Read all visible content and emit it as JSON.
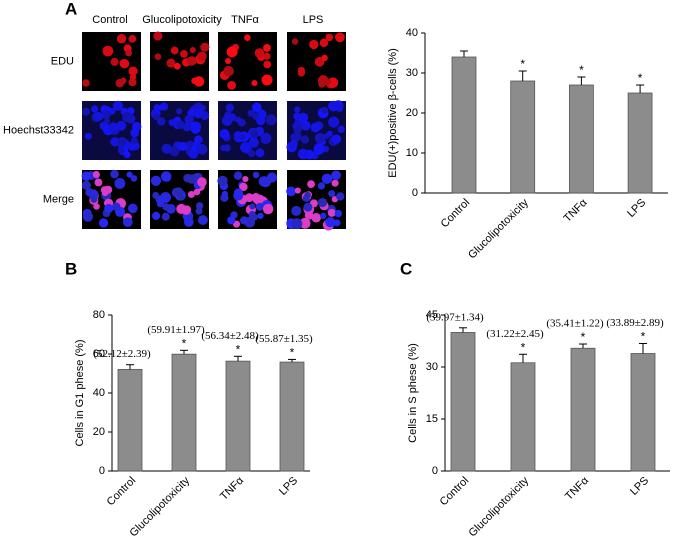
{
  "image_panel": {
    "columns": [
      "Control",
      "Glucolipotoxicity",
      "TNFα",
      "LPS"
    ],
    "rows": [
      "EDU",
      "Hoechst33342",
      "Merge"
    ]
  },
  "chart_data": [
    {
      "type": "bar",
      "panel": "A",
      "ylabel": "EDU(+)positive β-cells (%)",
      "categories": [
        "Control",
        "Glucolipotoxicity",
        "TNFα",
        "LPS"
      ],
      "values": [
        34,
        28,
        27,
        25
      ],
      "errors": [
        1.5,
        2.5,
        2,
        2
      ],
      "significance": [
        null,
        "*",
        "*",
        "*"
      ],
      "color": "#8c8c8c",
      "ylim": [
        0,
        40
      ],
      "yticks": [
        0,
        10,
        20,
        30,
        40
      ]
    },
    {
      "type": "bar",
      "panel": "B",
      "ylabel": "Cells in G1 phese (%)",
      "categories": [
        "Control",
        "Glucolipotoxicity",
        "TNFα",
        "LPS"
      ],
      "values": [
        52.12,
        59.91,
        56.34,
        55.87
      ],
      "errors": [
        2.39,
        1.97,
        2.48,
        1.35
      ],
      "value_labels": [
        "(52.12±2.39)",
        "(59.91±1.97)",
        "(56.34±2.48)",
        "(55.87±1.35)"
      ],
      "significance": [
        null,
        "*",
        "*",
        "*"
      ],
      "color": "#8c8c8c",
      "ylim": [
        0,
        80
      ],
      "yticks": [
        0,
        20,
        40,
        60,
        80
      ]
    },
    {
      "type": "bar",
      "panel": "C",
      "ylabel": "Cells in S phese (%)",
      "categories": [
        "Control",
        "Glucolipotoxicity",
        "TNFα",
        "LPS"
      ],
      "values": [
        39.97,
        31.22,
        35.41,
        33.89
      ],
      "errors": [
        1.34,
        2.45,
        1.22,
        2.89
      ],
      "value_labels": [
        "(39.97±1.34)",
        "(31.22±2.45)",
        "(35.41±1.22)",
        "(33.89±2.89)"
      ],
      "significance": [
        null,
        "*",
        "*",
        "*"
      ],
      "color": "#8c8c8c",
      "ylim": [
        0,
        45
      ],
      "yticks": [
        0,
        15,
        30,
        45
      ]
    }
  ]
}
